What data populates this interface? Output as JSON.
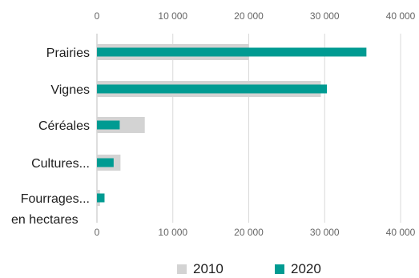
{
  "chart_data": {
    "type": "bar",
    "orientation": "horizontal",
    "categories": [
      "Prairies",
      "Vignes",
      "Céréales",
      "Cultures...",
      "Fourrages..."
    ],
    "series": [
      {
        "name": "2010",
        "color": "#d3d3d3",
        "values": [
          20000,
          29500,
          6300,
          3100,
          400
        ]
      },
      {
        "name": "2020",
        "color": "#009b92",
        "values": [
          35500,
          30300,
          3000,
          2200,
          1000
        ]
      }
    ],
    "xlim": [
      0,
      40000
    ],
    "xticks": [
      0,
      10000,
      20000,
      30000,
      40000
    ],
    "xtick_labels": [
      "0",
      "10 000",
      "20 000",
      "30 000",
      "40 000"
    ],
    "unit_label": "en hectares",
    "grid": true,
    "legend_position": "bottom"
  }
}
